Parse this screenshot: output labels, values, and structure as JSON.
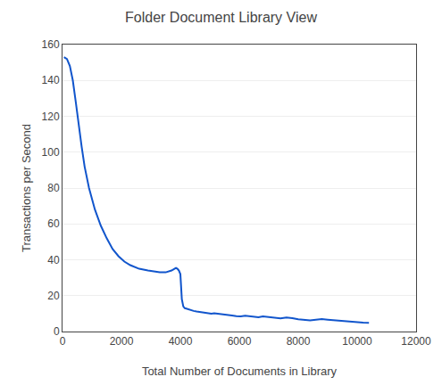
{
  "chart_data": {
    "type": "line",
    "title": "Folder Document Library View",
    "xlabel": "Total Number of Documents in Library",
    "ylabel": "Transactions per Second",
    "xlim": [
      0,
      12000
    ],
    "ylim": [
      0,
      160
    ],
    "xticks": [
      0,
      2000,
      4000,
      6000,
      8000,
      10000,
      12000
    ],
    "yticks": [
      0,
      20,
      40,
      60,
      80,
      100,
      120,
      140,
      160
    ],
    "grid": "y",
    "color": "#1155cc",
    "x": [
      50,
      150,
      250,
      350,
      450,
      550,
      650,
      750,
      900,
      1100,
      1300,
      1500,
      1700,
      1900,
      2100,
      2300,
      2600,
      2900,
      3100,
      3300,
      3500,
      3600,
      3700,
      3800,
      3850,
      3900,
      3950,
      4000,
      4050,
      4100,
      4150,
      4200,
      4250,
      4300,
      4350,
      4400,
      4450,
      4550,
      4650,
      4750,
      4850,
      4950,
      5050,
      5150,
      5300,
      5450,
      5600,
      5750,
      5900,
      6050,
      6200,
      6350,
      6500,
      6650,
      6800,
      7000,
      7200,
      7400,
      7600,
      7800,
      8000,
      8200,
      8400,
      8600,
      8800,
      9000,
      9200,
      9400,
      9600,
      9800,
      10000,
      10200,
      10400
    ],
    "values": [
      153,
      152,
      148,
      140,
      128,
      115,
      103,
      92,
      80,
      68,
      59,
      52,
      46,
      42,
      39,
      37,
      35,
      34,
      33.5,
      33,
      33,
      33.5,
      34,
      35,
      35.5,
      35,
      34,
      32,
      18,
      14,
      13,
      12.8,
      12.5,
      12.3,
      12.0,
      11.8,
      11.5,
      11.2,
      10.9,
      10.7,
      10.5,
      10.2,
      10.0,
      10.2,
      9.8,
      9.4,
      9.1,
      8.9,
      8.6,
      8.4,
      8.8,
      8.5,
      8.2,
      7.9,
      8.4,
      8.0,
      7.6,
      7.3,
      7.8,
      7.5,
      6.8,
      6.5,
      6.2,
      6.6,
      6.9,
      6.6,
      6.3,
      6.0,
      5.7,
      5.4,
      5.1,
      5.0,
      4.9
    ]
  }
}
